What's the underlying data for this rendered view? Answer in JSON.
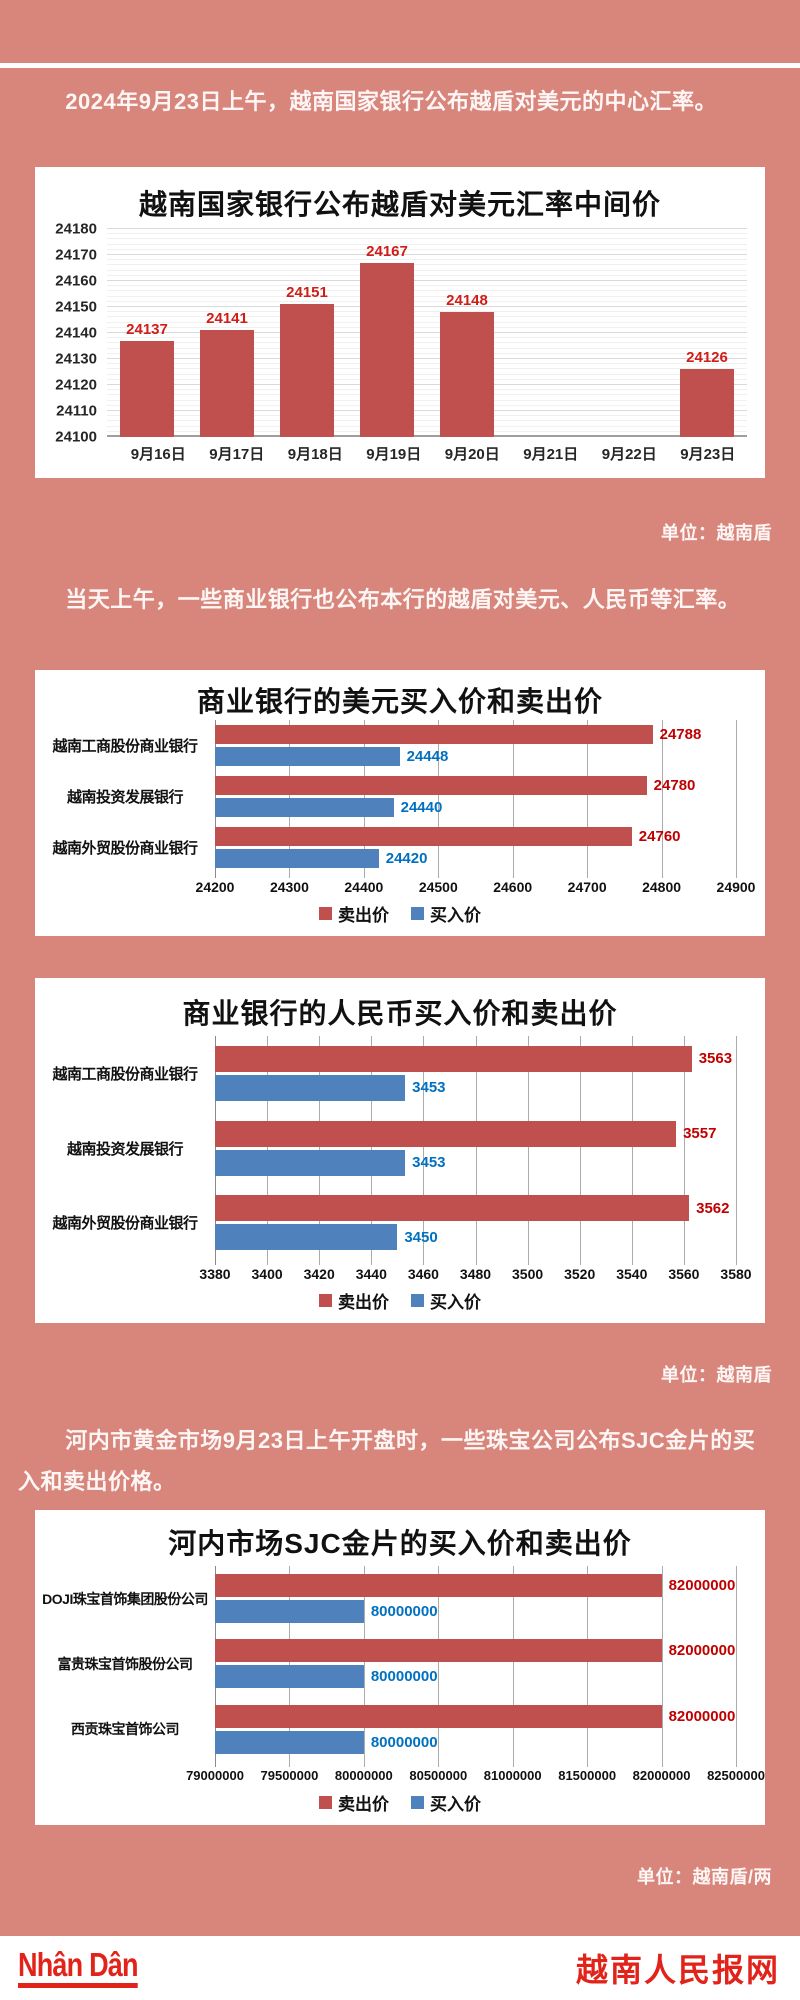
{
  "page": {
    "bg_color": "#d8857c",
    "paragraph1": "2024年9月23日上午，越南国家银行公布越盾对美元的中心汇率。",
    "paragraph2": "当天上午，一些商业银行也公布本行的越盾对美元、人民币等汇率。",
    "paragraph3": "河内市黄金市场9月23日上午开盘时，一些珠宝公司公布SJC金片的买入和卖出价格。",
    "unit_label_1": "单位：越南盾",
    "unit_label_2": "单位：越南盾",
    "unit_label_3": "单位：越南盾/两"
  },
  "colors": {
    "sell_bar": "#c0504d",
    "buy_bar": "#4f81bd",
    "sell_value_label": "#c00000",
    "buy_value_label": "#0070c0",
    "column_value_label": "#cf1d17",
    "background": "#d8857c",
    "brand_red": "#e2231a"
  },
  "footer": {
    "logo_text": "Nhân Dân",
    "site_name": "越南人民报网"
  },
  "chart_data": [
    {
      "type": "bar",
      "title": "越南国家银行公布越盾对美元汇率中间价",
      "categories": [
        "9月16日",
        "9月17日",
        "9月18日",
        "9月19日",
        "9月20日",
        "9月21日",
        "9月22日",
        "9月23日"
      ],
      "values": [
        24137,
        24141,
        24151,
        24167,
        24148,
        null,
        null,
        24126
      ],
      "xlabel": "",
      "ylabel": "",
      "ylim": [
        24100,
        24180
      ],
      "ytick_step": 10,
      "grid": true,
      "bar_color": "#c0504d",
      "value_label_color": "#cf1d17",
      "unit": "越南盾"
    },
    {
      "type": "bar",
      "orientation": "horizontal",
      "title": "商业银行的美元买入价和卖出价",
      "categories": [
        "越南工商股份商业银行",
        "越南投资发展银行",
        "越南外贸股份商业银行"
      ],
      "series": [
        {
          "name": "卖出价",
          "color": "#c0504d",
          "label_color": "#c00000",
          "values": [
            24788,
            24780,
            24760
          ]
        },
        {
          "name": "买入价",
          "color": "#4f81bd",
          "label_color": "#0070c0",
          "values": [
            24448,
            24440,
            24420
          ]
        }
      ],
      "xlim": [
        24200,
        24900
      ],
      "xtick_step": 100,
      "grid": true,
      "legend_position": "bottom",
      "unit": "越南盾"
    },
    {
      "type": "bar",
      "orientation": "horizontal",
      "title": "商业银行的人民币买入价和卖出价",
      "categories": [
        "越南工商股份商业银行",
        "越南投资发展银行",
        "越南外贸股份商业银行"
      ],
      "series": [
        {
          "name": "卖出价",
          "color": "#c0504d",
          "label_color": "#c00000",
          "values": [
            3563,
            3557,
            3562
          ]
        },
        {
          "name": "买入价",
          "color": "#4f81bd",
          "label_color": "#0070c0",
          "values": [
            3453,
            3453,
            3450
          ]
        }
      ],
      "xlim": [
        3380,
        3580
      ],
      "xtick_step": 20,
      "grid": true,
      "legend_position": "bottom",
      "unit": "越南盾"
    },
    {
      "type": "bar",
      "orientation": "horizontal",
      "title": "河内市场SJC金片的买入价和卖出价",
      "categories": [
        "DOJI珠宝首饰集团股份公司",
        "富贵珠宝首饰股份公司",
        "西贡珠宝首饰公司"
      ],
      "series": [
        {
          "name": "卖出价",
          "color": "#c0504d",
          "label_color": "#c00000",
          "values": [
            82000000,
            82000000,
            82000000
          ]
        },
        {
          "name": "买入价",
          "color": "#4f81bd",
          "label_color": "#0070c0",
          "values": [
            80000000,
            80000000,
            80000000
          ]
        }
      ],
      "xlim": [
        79000000,
        82500000
      ],
      "xtick_step": 500000,
      "grid": true,
      "legend_position": "bottom",
      "unit": "越南盾/两"
    }
  ]
}
